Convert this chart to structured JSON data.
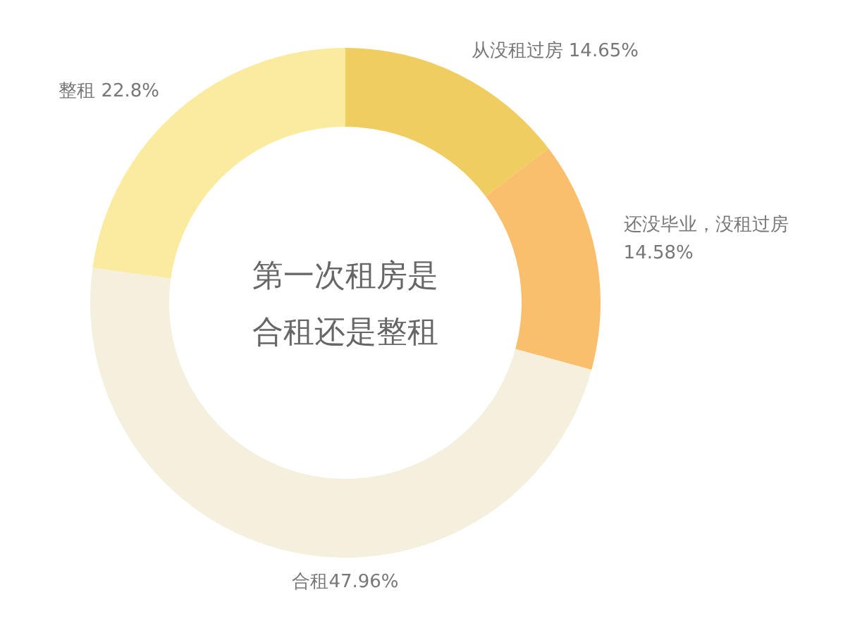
{
  "chart_data": {
    "type": "donut",
    "title": "第一次租房是合租还是整租",
    "categories": [
      "从没租过房",
      "还没毕业，没租过房",
      "合租",
      "整租"
    ],
    "values": [
      14.65,
      14.58,
      47.96,
      22.8
    ],
    "value_labels": [
      "14.65%",
      "14.58%",
      "47.96%",
      "22.8%"
    ],
    "colors": [
      "#f0cd60",
      "#f9bf6c",
      "#f5f0de",
      "#faeb9e"
    ],
    "legend": false
  }
}
